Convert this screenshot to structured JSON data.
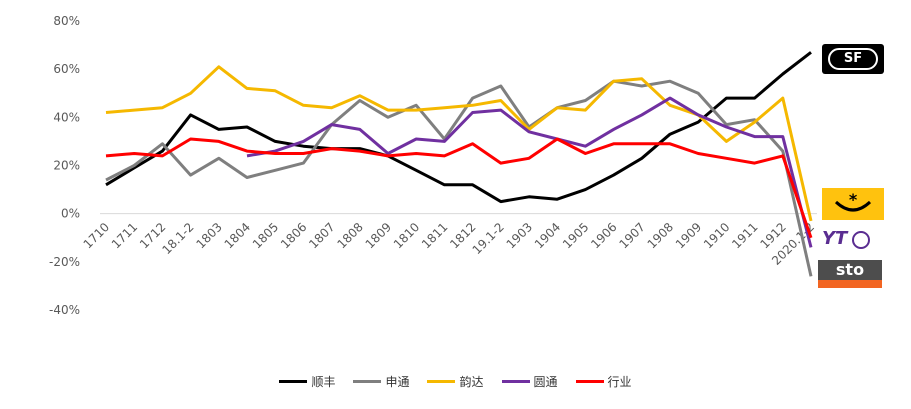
{
  "chart_data": {
    "type": "line",
    "title": "",
    "xlabel": "",
    "ylabel": "",
    "ylim": [
      -40,
      80
    ],
    "y_ticks": [
      "80%",
      "60%",
      "40%",
      "20%",
      "0%",
      "-20%",
      "-40%"
    ],
    "y_tick_values": [
      80,
      60,
      40,
      20,
      0,
      -20,
      -40
    ],
    "categories": [
      "1710",
      "1711",
      "1712",
      "18.1-2",
      "1803",
      "1804",
      "1805",
      "1806",
      "1807",
      "1808",
      "1809",
      "1810",
      "1811",
      "1812",
      "19.1-2",
      "1903",
      "1904",
      "1905",
      "1906",
      "1907",
      "1908",
      "1909",
      "1910",
      "1911",
      "1912",
      "2020.1-2"
    ],
    "grid": false,
    "legend_position": "bottom",
    "series": [
      {
        "name": "顺丰",
        "color": "#000000",
        "values": [
          12,
          19,
          26,
          41,
          35,
          36,
          30,
          28,
          27,
          27,
          24,
          18,
          12,
          12,
          5,
          7,
          6,
          10,
          16,
          23,
          33,
          38,
          48,
          48,
          58,
          67
        ]
      },
      {
        "name": "申通",
        "color": "#7f7f7f",
        "values": [
          14,
          20,
          29,
          16,
          23,
          15,
          18,
          21,
          37,
          47,
          40,
          45,
          31,
          48,
          53,
          36,
          44,
          47,
          55,
          53,
          55,
          50,
          37,
          39,
          26,
          -26
        ]
      },
      {
        "name": "韵达",
        "color": "#f5b800",
        "values": [
          42,
          43,
          44,
          50,
          61,
          52,
          51,
          45,
          44,
          49,
          43,
          43,
          44,
          45,
          47,
          35,
          44,
          43,
          55,
          56,
          45,
          41,
          30,
          38,
          48,
          -3
        ]
      },
      {
        "name": "圆通",
        "color": "#7030a0",
        "values": [
          null,
          null,
          null,
          null,
          null,
          24,
          26,
          30,
          37,
          35,
          25,
          31,
          30,
          42,
          43,
          34,
          31,
          28,
          35,
          41,
          48,
          41,
          36,
          32,
          32,
          -14
        ]
      },
      {
        "name": "行业",
        "color": "#ff0000",
        "values": [
          24,
          25,
          24,
          31,
          30,
          26,
          25,
          25,
          27,
          26,
          24,
          25,
          24,
          29,
          21,
          23,
          31,
          25,
          29,
          29,
          29,
          25,
          23,
          21,
          24,
          -10
        ]
      }
    ]
  },
  "logos": [
    {
      "name": "sf-express-logo",
      "text": "SF"
    },
    {
      "name": "yunda-logo",
      "text": ""
    },
    {
      "name": "yto-logo",
      "text": "YT"
    },
    {
      "name": "sto-logo",
      "text": "sto"
    }
  ]
}
